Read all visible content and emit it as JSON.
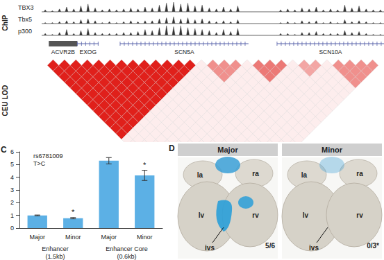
{
  "chip": {
    "label": "ChIP",
    "tracks": [
      {
        "name": "TBX3",
        "values": [
          0.2,
          0.1,
          0.3,
          0.5,
          0.3,
          0.6,
          0.8,
          0.4,
          0.2,
          0.3,
          0.2,
          0.3,
          0.4,
          0.3,
          0.5,
          0.4,
          0.7,
          0.9,
          1.0,
          0.8,
          0.9,
          0.6,
          0.7,
          0.4,
          0.3,
          0.5,
          0.3,
          0.6,
          0,
          0,
          0,
          0,
          0,
          0.2,
          0.3,
          0.2,
          0.4,
          0.3,
          0.5,
          0.2,
          0.3,
          0.2,
          0.7,
          0.4,
          0.6,
          0.3,
          0.2,
          0.2
        ]
      },
      {
        "name": "Tbx5",
        "values": [
          0.1,
          0.1,
          0.2,
          0.3,
          0.2,
          0.4,
          0.5,
          0.3,
          0.1,
          0.2,
          0.1,
          0.2,
          0.3,
          0.2,
          0.3,
          0.3,
          0.5,
          0.6,
          0.7,
          0.5,
          0.6,
          0.4,
          0.5,
          0.3,
          0.2,
          0.3,
          0.2,
          0.4,
          0,
          0,
          0,
          0,
          0,
          0.1,
          0.2,
          0.1,
          0.3,
          0.2,
          0.3,
          0.1,
          0.2,
          0.1,
          0.4,
          0.2,
          0.3,
          0.2,
          0.1,
          0.1
        ]
      },
      {
        "name": "p300",
        "values": [
          0.2,
          0.1,
          0.3,
          0.6,
          0.2,
          0.5,
          0.7,
          0.3,
          0.2,
          0.2,
          0.2,
          0.3,
          0.3,
          0.4,
          0.6,
          0.5,
          0.8,
          1.0,
          0.9,
          1.0,
          0.8,
          0.7,
          0.6,
          0.5,
          0.3,
          0.6,
          0.4,
          0.7,
          0,
          0,
          0,
          0,
          0,
          0.2,
          0.2,
          0.1,
          0.3,
          0.3,
          0.4,
          0.2,
          0.2,
          0.2,
          0.5,
          0.3,
          0.4,
          0.2,
          0.1,
          0.1
        ]
      }
    ]
  },
  "genes": [
    {
      "name": "ACVR2B",
      "start": 1,
      "end": 4
    },
    {
      "name": "EXOG",
      "start": 5,
      "end": 7
    },
    {
      "name": "SCN5A",
      "start": 11,
      "end": 28
    },
    {
      "name": "SCN10A",
      "start": 33,
      "end": 47
    }
  ],
  "ld": {
    "label": "CEU LOD",
    "markers": 30,
    "background_lod": 0.08,
    "blocks": [
      {
        "start": 0,
        "end": 13,
        "lod": 1.0
      },
      {
        "start": 14,
        "end": 17,
        "lod": 0.5
      },
      {
        "start": 18,
        "end": 21,
        "lod": 0.6
      },
      {
        "start": 22,
        "end": 24,
        "lod": 0.4
      },
      {
        "start": 25,
        "end": 29,
        "lod": 0.5
      }
    ]
  },
  "chart_data": {
    "type": "bar",
    "panel_label": "C",
    "annotation": "rs6781009\nT>C",
    "categories": [
      "Major",
      "Minor",
      "Major",
      "Minor"
    ],
    "groups": [
      {
        "label": "Enhancer\n(1.5kb)",
        "size": 2
      },
      {
        "label": "Enhancer Core\n(0.6kb)",
        "size": 2
      }
    ],
    "values": [
      1.0,
      0.78,
      5.3,
      4.15
    ],
    "errors": [
      0.03,
      0.05,
      0.25,
      0.4
    ],
    "significance": [
      null,
      "*",
      null,
      "*"
    ],
    "color": "#5cb0e5",
    "ylim": [
      0,
      6
    ],
    "yticks": [
      0,
      1,
      2,
      3,
      4,
      5,
      6
    ],
    "grid": false
  },
  "panel_d": {
    "panel_label": "D",
    "conditions": [
      {
        "name": "Major",
        "count": "5/6",
        "stained": true
      },
      {
        "name": "Minor",
        "count": "0/3*",
        "stained": false
      }
    ],
    "regions": {
      "left_atrium": "la",
      "right_atrium": "ra",
      "left_ventricle": "lv",
      "right_ventricle": "rv",
      "septum": "ivs"
    }
  }
}
